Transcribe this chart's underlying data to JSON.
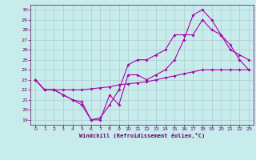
{
  "xlabel": "Windchill (Refroidissement éolien,°C)",
  "bg_color": "#c8ecec",
  "line_color": "#aa00aa",
  "grid_color": "#aacccc",
  "xlim": [
    -0.5,
    23.5
  ],
  "ylim": [
    18.5,
    30.5
  ],
  "xticks": [
    0,
    1,
    2,
    3,
    4,
    5,
    6,
    7,
    8,
    9,
    10,
    11,
    12,
    13,
    14,
    15,
    16,
    17,
    18,
    19,
    20,
    21,
    22,
    23
  ],
  "yticks": [
    19,
    20,
    21,
    22,
    23,
    24,
    25,
    26,
    27,
    28,
    29,
    30
  ],
  "series1_x": [
    0,
    1,
    2,
    3,
    4,
    5,
    6,
    7,
    8,
    9,
    10,
    11,
    12,
    13,
    14,
    15,
    16,
    17,
    18,
    19,
    20,
    21,
    22,
    23
  ],
  "series1_y": [
    23,
    22,
    22,
    21.5,
    21,
    20.5,
    19.0,
    19.0,
    21.5,
    20.5,
    23.5,
    23.5,
    23,
    23.5,
    24,
    25,
    27,
    29.5,
    30,
    29,
    27.5,
    26.5,
    25,
    24
  ],
  "series2_x": [
    0,
    1,
    2,
    3,
    4,
    5,
    6,
    7,
    8,
    9,
    10,
    11,
    12,
    13,
    14,
    15,
    16,
    17,
    18,
    19,
    20,
    21,
    22,
    23
  ],
  "series2_y": [
    23,
    22,
    22,
    22,
    22,
    22,
    22.1,
    22.2,
    22.3,
    22.5,
    22.6,
    22.7,
    22.8,
    23.0,
    23.2,
    23.4,
    23.6,
    23.8,
    24.0,
    24.0,
    24.0,
    24.0,
    24.0,
    24.0
  ],
  "series3_x": [
    0,
    1,
    2,
    3,
    4,
    5,
    6,
    7,
    8,
    9,
    10,
    11,
    12,
    13,
    14,
    15,
    16,
    17,
    18,
    19,
    20,
    21,
    22,
    23
  ],
  "series3_y": [
    23,
    22,
    22,
    21.5,
    21,
    20.8,
    19.0,
    19.2,
    20.5,
    22,
    24.5,
    25,
    25,
    25.5,
    26,
    27.5,
    27.5,
    27.5,
    29,
    28,
    27.5,
    26,
    25.5,
    25
  ]
}
